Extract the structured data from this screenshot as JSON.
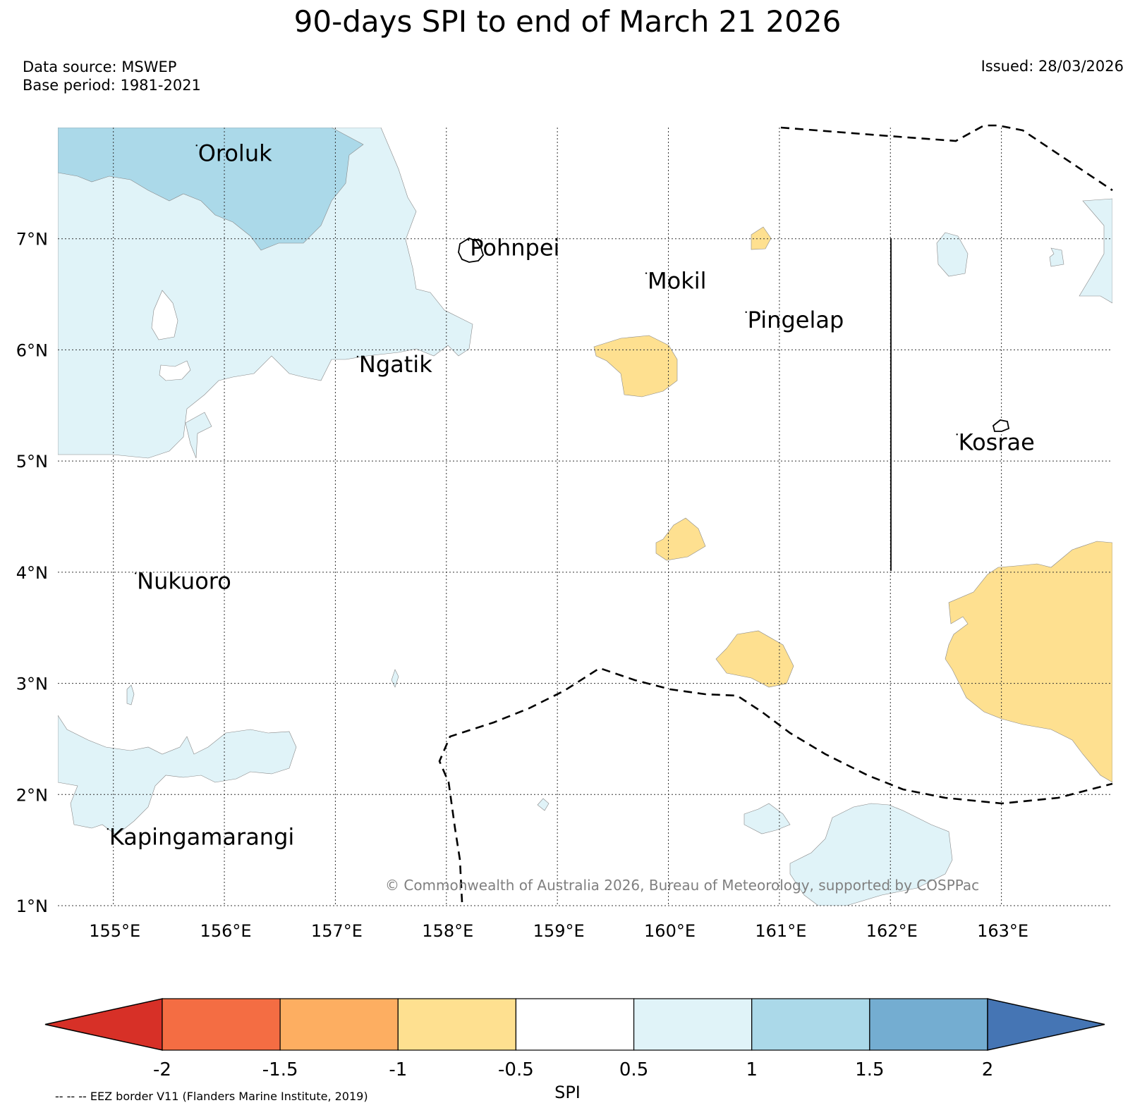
{
  "title": "90-days SPI to end of March 21 2026",
  "data_source": "Data source: MSWEP",
  "base_period": "Base period: 1981-2021",
  "issued": "Issued: 28/03/2026",
  "credit": "© Commonwealth of Australia 2026, Bureau of Meteorology, supported by COSPPac",
  "eez_note": "-- -- -- EEZ border V11 (Flanders Marine Institute, 2019)",
  "colorbar": {
    "label": "SPI",
    "ticks": [
      "-2",
      "-1.5",
      "-1",
      "-0.5",
      "0.5",
      "1",
      "1.5",
      "2"
    ],
    "colors": [
      "#d73027",
      "#f46d43",
      "#fdae61",
      "#fee090",
      "#ffffff",
      "#e0f3f8",
      "#abd9e9",
      "#74add1",
      "#4575b4"
    ]
  },
  "axes": {
    "lon_labels": [
      "155°E",
      "156°E",
      "157°E",
      "158°E",
      "159°E",
      "160°E",
      "161°E",
      "162°E",
      "163°E"
    ],
    "lat_labels": [
      "7°N",
      "6°N",
      "5°N",
      "4°N",
      "3°N",
      "2°N",
      "1°N"
    ],
    "lon_values": [
      155,
      156,
      157,
      158,
      159,
      160,
      161,
      162,
      163
    ],
    "lat_values": [
      7,
      6,
      5,
      4,
      3,
      2,
      1
    ],
    "lon_range": [
      154.5,
      164.0
    ],
    "lat_range": [
      1.0,
      8.0
    ]
  },
  "places": [
    {
      "name": "Oroluk",
      "lon": 155.75,
      "lat": 7.7
    },
    {
      "name": "Pohnpei",
      "lon": 158.2,
      "lat": 6.85
    },
    {
      "name": "Mokil",
      "lon": 159.8,
      "lat": 6.55
    },
    {
      "name": "Pingelap",
      "lon": 160.7,
      "lat": 6.2
    },
    {
      "name": "Ngatik",
      "lon": 157.2,
      "lat": 5.8
    },
    {
      "name": "Kosrae",
      "lon": 162.6,
      "lat": 5.1
    },
    {
      "name": "Nukuoro",
      "lon": 155.2,
      "lat": 3.85
    },
    {
      "name": "Kapingamarangi",
      "lon": 154.95,
      "lat": 1.55
    }
  ]
}
